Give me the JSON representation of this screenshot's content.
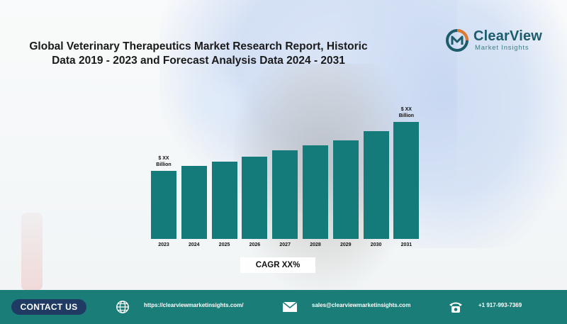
{
  "title_line1": "Global Veterinary Therapeutics Market Research Report, Historic",
  "title_line2": "Data 2019 - 2023 and Forecast Analysis Data 2024 - 2031",
  "logo": {
    "name": "ClearView",
    "subtitle": "Market Insights",
    "accent": "#1d5d6b"
  },
  "cagr_label": "CAGR XX%",
  "footer": {
    "contact_label": "CONTACT US",
    "website": "https://clearviewmarketinsights.com/",
    "email": "sales@clearviewmarketinsights.com",
    "phone": "+1 917-993-7369",
    "background": "#1a7d78",
    "contact_bg": "#1f3b63"
  },
  "chart_data": {
    "type": "bar",
    "title": "",
    "xlabel": "",
    "ylabel": "",
    "categories": [
      "2023",
      "2024",
      "2025",
      "2026",
      "2027",
      "2028",
      "2029",
      "2030",
      "2031"
    ],
    "values": [
      93,
      100,
      106,
      113,
      121,
      128,
      135,
      148,
      160
    ],
    "ylim": [
      0,
      170
    ],
    "bar_color": "#147a7a",
    "data_labels": [
      {
        "category": "2023",
        "line1": "$ XX",
        "line2": "Billion"
      },
      {
        "category": "2031",
        "line1": "$ XX",
        "line2": "Billion"
      }
    ],
    "grid": false,
    "legend": "none"
  }
}
